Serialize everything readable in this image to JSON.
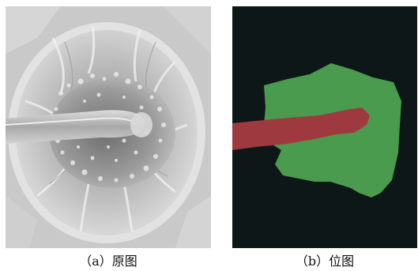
{
  "captions": {
    "a": "（a）原图",
    "b": "（b）位图"
  },
  "colors": {
    "background_mask": "#0e1717",
    "region_green": "#4a9b4e",
    "region_red": "#9e3a3f",
    "photo_gray": "#bdbdbd"
  }
}
